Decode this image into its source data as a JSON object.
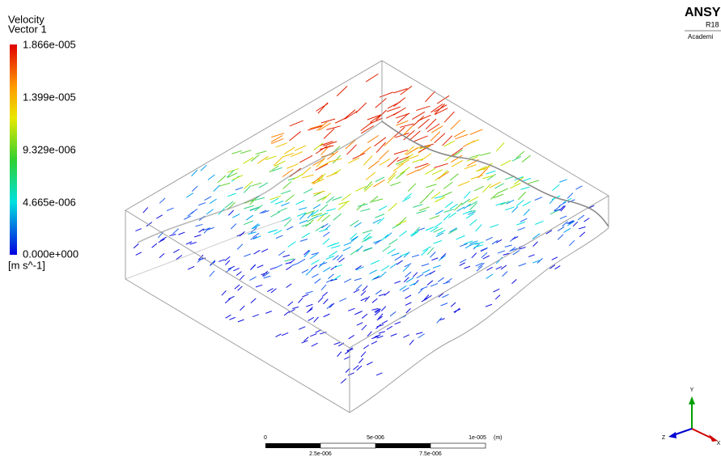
{
  "legend": {
    "title": "Velocity",
    "subtitle": "Vector 1",
    "labels": [
      "1.866e-005",
      "1.399e-005",
      "9.329e-006",
      "4.665e-006",
      "0.000e+000"
    ],
    "unit": "[m s^-1]"
  },
  "logo": {
    "name": "ANSY",
    "version": "R18",
    "edition": "Academi"
  },
  "scale_bar": {
    "top_labels": [
      "0",
      "5e-006",
      "1e-005"
    ],
    "unit": "(m)",
    "bottom_labels": [
      "2.5e-006",
      "7.5e-006"
    ]
  },
  "triad": {
    "y": "Y",
    "z": "Z",
    "x": "X"
  }
}
